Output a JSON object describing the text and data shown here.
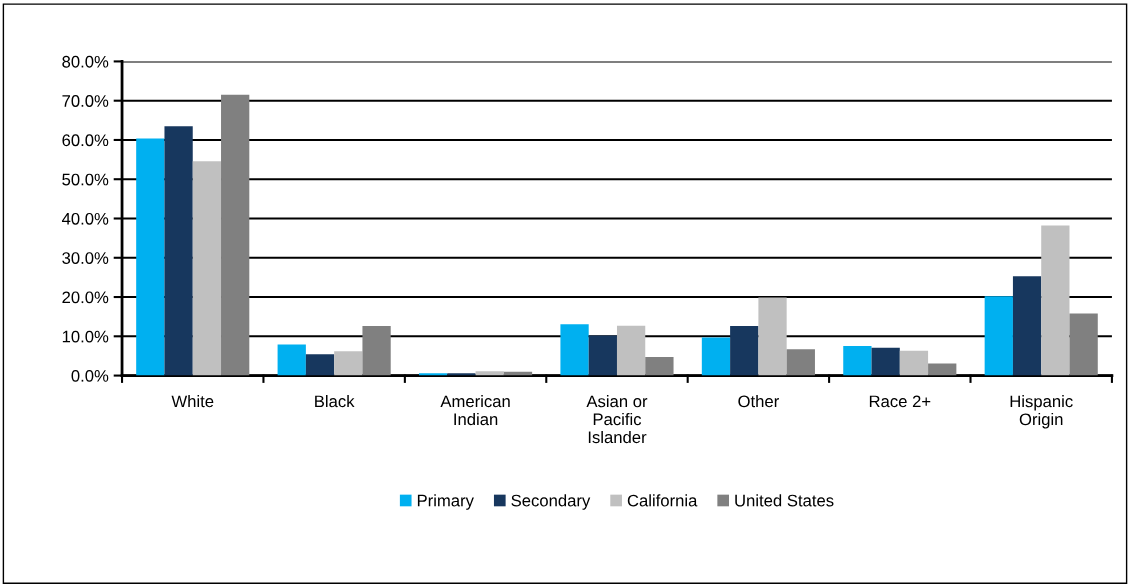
{
  "chart_data": {
    "type": "bar",
    "categories": [
      "White",
      "Black",
      "American\nIndian",
      "Asian or\nPacific\nIslander",
      "Other",
      "Race 2+",
      "Hispanic\nOrigin"
    ],
    "series": [
      {
        "name": "Primary",
        "color": "#00b0f0",
        "values": [
          60.4,
          7.9,
          0.6,
          13.1,
          9.7,
          7.5,
          20.2
        ]
      },
      {
        "name": "Secondary",
        "color": "#17375e",
        "values": [
          63.5,
          5.4,
          0.6,
          10.2,
          12.6,
          7.1,
          25.3
        ]
      },
      {
        "name": "California",
        "color": "#c0c0c0",
        "values": [
          54.6,
          6.2,
          1.1,
          12.7,
          19.9,
          6.3,
          38.2
        ]
      },
      {
        "name": "United States",
        "color": "#808080",
        "values": [
          71.5,
          12.6,
          1.0,
          4.7,
          6.7,
          3.1,
          15.8
        ]
      }
    ],
    "ylim": [
      0,
      80
    ],
    "yticks": [
      {
        "value": 0,
        "label": "0.0%"
      },
      {
        "value": 10,
        "label": "10.0%"
      },
      {
        "value": 20,
        "label": "20.0%"
      },
      {
        "value": 30,
        "label": "30.0%"
      },
      {
        "value": 40,
        "label": "40.0%"
      },
      {
        "value": 50,
        "label": "50.0%"
      },
      {
        "value": 60,
        "label": "60.0%"
      },
      {
        "value": 70,
        "label": "70.0%"
      },
      {
        "value": 80,
        "label": "80.0%"
      }
    ],
    "grid": "y",
    "legend": "bottom"
  }
}
